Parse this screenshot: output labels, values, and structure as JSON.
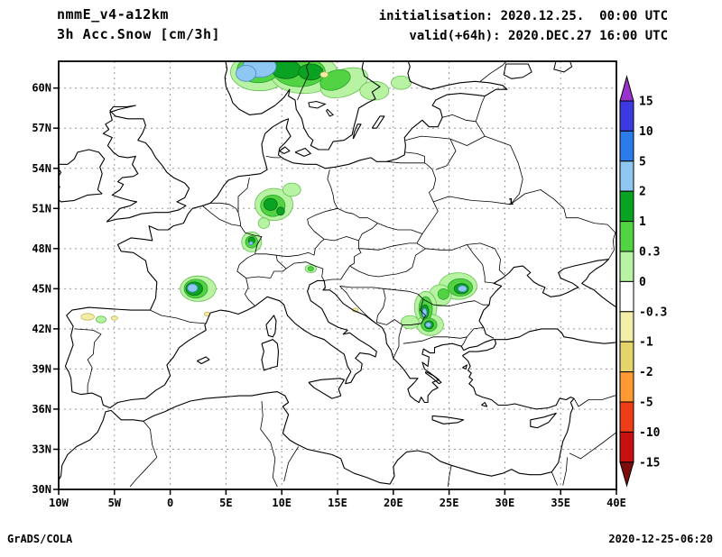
{
  "header": {
    "model": "nmmE_v4-a12km",
    "product": "3h Acc.Snow [cm/3h]",
    "init": "initialisation: 2020.12.25.  00:00 UTC",
    "valid": "valid(+64h): 2020.DEC.27 16:00 UTC"
  },
  "footer": {
    "left": "GrADS/COLA",
    "right": "2020-12-25-06:20"
  },
  "chart_data": {
    "type": "heatmap",
    "title": "3h Acc.Snow [cm/3h]",
    "model": "nmmE_v4-a12km",
    "projection": "latlon",
    "lon_range": [
      -10,
      40
    ],
    "lat_range": [
      30,
      62
    ],
    "grid": "dashed",
    "lat_ticks": [
      {
        "v": 30,
        "label": "30N"
      },
      {
        "v": 33,
        "label": "33N"
      },
      {
        "v": 36,
        "label": "36N"
      },
      {
        "v": 39,
        "label": "39N"
      },
      {
        "v": 42,
        "label": "42N"
      },
      {
        "v": 45,
        "label": "45N"
      },
      {
        "v": 48,
        "label": "48N"
      },
      {
        "v": 51,
        "label": "51N"
      },
      {
        "v": 54,
        "label": "54N"
      },
      {
        "v": 57,
        "label": "57N"
      },
      {
        "v": 60,
        "label": "60N"
      }
    ],
    "lon_ticks": [
      {
        "v": -10,
        "label": "10W"
      },
      {
        "v": -5,
        "label": "5W"
      },
      {
        "v": 0,
        "label": "0"
      },
      {
        "v": 5,
        "label": "5E"
      },
      {
        "v": 10,
        "label": "10E"
      },
      {
        "v": 15,
        "label": "15E"
      },
      {
        "v": 20,
        "label": "20E"
      },
      {
        "v": 25,
        "label": "25E"
      },
      {
        "v": 30,
        "label": "30E"
      },
      {
        "v": 35,
        "label": "35E"
      },
      {
        "v": 40,
        "label": "40E"
      }
    ],
    "colorbar": {
      "unit": "cm/3h",
      "levels": [
        "15",
        "10",
        "5",
        "2",
        "1",
        "0.3",
        "0",
        "-0.3",
        "-1",
        "-2",
        "-5",
        "-10",
        "-15"
      ],
      "colors": [
        "#9932cc",
        "#3a3ae0",
        "#2b7cea",
        "#8ec8f2",
        "#0aa222",
        "#52d343",
        "#b7f3a3",
        "#ffffff",
        "#f2eda9",
        "#e5d36b",
        "#ff9933",
        "#ee3d17",
        "#c81010",
        "#7d0d0d"
      ]
    },
    "snow_patches": [
      {
        "level": "0-0.3",
        "lon": 8.0,
        "lat": 61.2,
        "rx": 2.6,
        "ry": 1.4
      },
      {
        "level": "0-0.3",
        "lon": 12.0,
        "lat": 61.1,
        "rx": 3.0,
        "ry": 1.5
      },
      {
        "level": "0-0.3",
        "lon": 15.6,
        "lat": 60.4,
        "rx": 2.2,
        "ry": 1.0,
        "rot": -20
      },
      {
        "level": "0-0.3",
        "lon": 18.3,
        "lat": 59.8,
        "rx": 1.3,
        "ry": 0.7
      },
      {
        "level": "0-0.3",
        "lon": 20.7,
        "lat": 60.4,
        "rx": 0.9,
        "ry": 0.5
      },
      {
        "level": "0.3-1",
        "lon": 7.9,
        "lat": 61.4,
        "rx": 1.9,
        "ry": 1.0
      },
      {
        "level": "0.3-1",
        "lon": 11.6,
        "lat": 61.2,
        "rx": 2.3,
        "ry": 1.1
      },
      {
        "level": "0.3-1",
        "lon": 14.8,
        "lat": 60.6,
        "rx": 1.4,
        "ry": 0.7,
        "rot": -20
      },
      {
        "level": "1-2",
        "lon": 10.4,
        "lat": 61.4,
        "rx": 1.3,
        "ry": 0.7
      },
      {
        "level": "1-2",
        "lon": 12.6,
        "lat": 61.2,
        "rx": 1.1,
        "ry": 0.6
      },
      {
        "level": "2-5",
        "lon": 8.0,
        "lat": 61.6,
        "rx": 1.5,
        "ry": 0.8
      },
      {
        "level": "2-5",
        "lon": 6.8,
        "lat": 61.1,
        "rx": 0.9,
        "ry": 0.6
      },
      {
        "level": "0-0.3",
        "lon": 9.3,
        "lat": 51.3,
        "rx": 1.7,
        "ry": 1.2
      },
      {
        "level": "0-0.3",
        "lon": 10.9,
        "lat": 52.4,
        "rx": 0.8,
        "ry": 0.5
      },
      {
        "level": "0-0.3",
        "lon": 8.4,
        "lat": 49.9,
        "rx": 0.5,
        "ry": 0.4
      },
      {
        "level": "0.3-1",
        "lon": 9.2,
        "lat": 51.2,
        "rx": 1.1,
        "ry": 0.8
      },
      {
        "level": "1-2",
        "lon": 9.0,
        "lat": 51.3,
        "rx": 0.6,
        "ry": 0.45
      },
      {
        "level": "1-2",
        "lon": 9.9,
        "lat": 50.8,
        "rx": 0.35,
        "ry": 0.3
      },
      {
        "level": "0-0.3",
        "lon": 7.3,
        "lat": 48.5,
        "rx": 0.9,
        "ry": 0.75
      },
      {
        "level": "0.3-1",
        "lon": 7.3,
        "lat": 48.5,
        "rx": 0.55,
        "ry": 0.45
      },
      {
        "level": "1-2",
        "lon": 7.3,
        "lat": 48.6,
        "rx": 0.3,
        "ry": 0.25
      },
      {
        "level": "2-5",
        "lon": 7.25,
        "lat": 48.4,
        "rx": 0.16,
        "ry": 0.13
      },
      {
        "level": "0-0.3",
        "lon": 2.5,
        "lat": 45.0,
        "rx": 1.6,
        "ry": 0.95
      },
      {
        "level": "0.3-1",
        "lon": 2.3,
        "lat": 45.0,
        "rx": 1.05,
        "ry": 0.7
      },
      {
        "level": "1-2",
        "lon": 2.15,
        "lat": 45.0,
        "rx": 0.75,
        "ry": 0.5
      },
      {
        "level": "2-5",
        "lon": 2.0,
        "lat": 45.05,
        "rx": 0.45,
        "ry": 0.3
      },
      {
        "level": "0-0.3",
        "lon": 12.6,
        "lat": 46.5,
        "rx": 0.5,
        "ry": 0.3
      },
      {
        "level": "0.3-1",
        "lon": 12.6,
        "lat": 46.5,
        "rx": 0.25,
        "ry": 0.16
      },
      {
        "level": "0-0.3",
        "lon": 25.8,
        "lat": 45.2,
        "rx": 1.7,
        "ry": 1.0
      },
      {
        "level": "0-0.3",
        "lon": 24.2,
        "lat": 44.5,
        "rx": 1.0,
        "ry": 0.8
      },
      {
        "level": "0-0.3",
        "lon": 22.9,
        "lat": 43.6,
        "rx": 1.0,
        "ry": 1.2
      },
      {
        "level": "0-0.3",
        "lon": 23.3,
        "lat": 42.3,
        "rx": 1.2,
        "ry": 0.8
      },
      {
        "level": "0-0.3",
        "lon": 21.5,
        "lat": 42.5,
        "rx": 0.8,
        "ry": 0.5
      },
      {
        "level": "0.3-1",
        "lon": 26.0,
        "lat": 45.1,
        "rx": 1.1,
        "ry": 0.65
      },
      {
        "level": "0.3-1",
        "lon": 22.9,
        "lat": 43.5,
        "rx": 0.6,
        "ry": 0.9
      },
      {
        "level": "0.3-1",
        "lon": 23.2,
        "lat": 42.3,
        "rx": 0.7,
        "ry": 0.5
      },
      {
        "level": "0.3-1",
        "lon": 24.5,
        "lat": 44.6,
        "rx": 0.5,
        "ry": 0.4
      },
      {
        "level": "1-2",
        "lon": 26.1,
        "lat": 45.0,
        "rx": 0.65,
        "ry": 0.38
      },
      {
        "level": "1-2",
        "lon": 22.85,
        "lat": 43.3,
        "rx": 0.33,
        "ry": 0.5
      },
      {
        "level": "1-2",
        "lon": 23.2,
        "lat": 42.3,
        "rx": 0.4,
        "ry": 0.3
      },
      {
        "level": "2-5",
        "lon": 26.2,
        "lat": 45.0,
        "rx": 0.4,
        "ry": 0.23
      },
      {
        "level": "2-5",
        "lon": 22.8,
        "lat": 43.2,
        "rx": 0.2,
        "ry": 0.32
      },
      {
        "level": "2-5",
        "lon": 23.15,
        "lat": 42.3,
        "rx": 0.24,
        "ry": 0.18
      },
      {
        "level": "-1--0.3",
        "lon": -7.4,
        "lat": 42.9,
        "rx": 0.6,
        "ry": 0.25
      },
      {
        "level": "-1--0.3",
        "lon": -5.0,
        "lat": 42.8,
        "rx": 0.3,
        "ry": 0.15
      },
      {
        "level": "-1--0.3",
        "lon": 3.3,
        "lat": 43.1,
        "rx": 0.25,
        "ry": 0.15
      },
      {
        "level": "-1--0.3",
        "lon": 16.6,
        "lat": 43.4,
        "rx": 0.25,
        "ry": 0.15
      },
      {
        "level": "-1--0.3",
        "lon": 13.8,
        "lat": 61.0,
        "rx": 0.35,
        "ry": 0.2
      },
      {
        "level": "0-0.3",
        "lon": -6.2,
        "lat": 42.7,
        "rx": 0.45,
        "ry": 0.25
      }
    ],
    "stray_contour_label": {
      "text": "1",
      "lon": 30.3,
      "lat": 51.3
    }
  }
}
